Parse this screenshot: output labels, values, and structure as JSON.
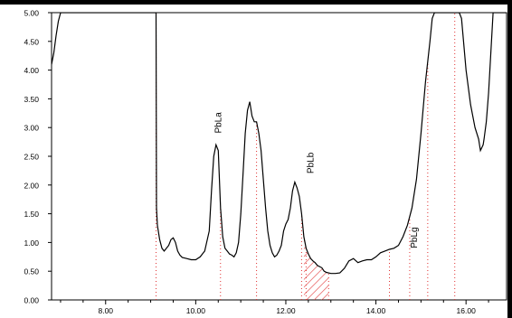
{
  "chart_data": {
    "type": "line",
    "title": "",
    "xlabel": "",
    "ylabel": "",
    "xlim": [
      6.8,
      16.9
    ],
    "ylim": [
      0,
      5
    ],
    "grid": false,
    "x_ticks": [
      8,
      10,
      12,
      14,
      16
    ],
    "x_tick_labels": [
      "8.00",
      "10.00",
      "12.00",
      "14.00",
      "16.00"
    ],
    "y_ticks": [
      0,
      0.5,
      1,
      1.5,
      2,
      2.5,
      3,
      3.5,
      4,
      4.5,
      5
    ],
    "y_tick_labels": [
      "0.00",
      "0.50",
      "1.00",
      "1.50",
      "2.00",
      "2.50",
      "3.00",
      "3.50",
      "4.00",
      "4.50",
      "5.00"
    ],
    "series": [
      {
        "color": "#000000",
        "x": [
          6.8,
          6.85,
          6.9,
          6.95,
          7.0,
          7.05,
          7.08,
          7.1,
          7.2,
          7.3,
          7.4,
          7.5,
          7.6,
          7.8,
          8.0,
          8.5,
          9.0,
          9.12,
          9.13,
          9.15,
          9.2,
          9.25,
          9.3,
          9.35,
          9.4,
          9.45,
          9.5,
          9.55,
          9.6,
          9.65,
          9.7,
          9.8,
          9.9,
          10.0,
          10.1,
          10.2,
          10.3,
          10.35,
          10.4,
          10.45,
          10.5,
          10.52,
          10.55,
          10.6,
          10.65,
          10.7,
          10.75,
          10.8,
          10.85,
          10.9,
          10.95,
          11.0,
          11.05,
          11.1,
          11.15,
          11.2,
          11.25,
          11.3,
          11.35,
          11.4,
          11.45,
          11.5,
          11.55,
          11.6,
          11.65,
          11.7,
          11.75,
          11.8,
          11.85,
          11.9,
          11.95,
          12.0,
          12.05,
          12.1,
          12.15,
          12.2,
          12.25,
          12.3,
          12.35,
          12.4,
          12.45,
          12.5,
          12.55,
          12.6,
          12.65,
          12.7,
          12.75,
          12.8,
          12.85,
          12.9,
          12.95,
          13.0,
          13.1,
          13.2,
          13.3,
          13.4,
          13.5,
          13.6,
          13.7,
          13.8,
          13.9,
          14.0,
          14.1,
          14.2,
          14.3,
          14.4,
          14.5,
          14.6,
          14.7,
          14.8,
          14.9,
          15.0,
          15.1,
          15.2,
          15.25,
          15.3,
          15.35,
          15.4,
          15.45,
          15.5,
          15.55,
          15.6,
          15.65,
          15.7,
          15.75,
          15.8,
          15.85,
          15.9,
          16.0,
          16.1,
          16.2,
          16.28,
          16.3,
          16.32,
          16.35,
          16.38,
          16.4,
          16.45,
          16.5,
          16.55,
          16.6,
          16.62,
          16.65,
          16.7,
          16.8,
          16.9
        ],
        "y": [
          4.1,
          4.3,
          4.6,
          4.85,
          5.0,
          5.0,
          5.0,
          5.0,
          5.0,
          5.0,
          5.0,
          5.0,
          5.0,
          5.0,
          5.0,
          5.0,
          5.0,
          5.0,
          1.6,
          1.3,
          1.05,
          0.9,
          0.85,
          0.9,
          0.95,
          1.05,
          1.08,
          1.0,
          0.85,
          0.78,
          0.74,
          0.72,
          0.7,
          0.7,
          0.75,
          0.85,
          1.2,
          1.9,
          2.5,
          2.7,
          2.6,
          2.2,
          1.6,
          1.1,
          0.9,
          0.85,
          0.8,
          0.78,
          0.75,
          0.82,
          1.0,
          1.5,
          2.2,
          2.9,
          3.3,
          3.45,
          3.2,
          3.1,
          3.1,
          2.9,
          2.6,
          2.1,
          1.6,
          1.2,
          0.95,
          0.82,
          0.75,
          0.78,
          0.85,
          0.95,
          1.2,
          1.32,
          1.4,
          1.6,
          1.9,
          2.05,
          1.95,
          1.8,
          1.5,
          1.1,
          0.9,
          0.8,
          0.72,
          0.68,
          0.65,
          0.6,
          0.58,
          0.56,
          0.5,
          0.48,
          0.47,
          0.46,
          0.46,
          0.47,
          0.55,
          0.68,
          0.72,
          0.65,
          0.68,
          0.7,
          0.7,
          0.75,
          0.82,
          0.85,
          0.88,
          0.9,
          0.95,
          1.1,
          1.3,
          1.6,
          2.1,
          2.9,
          3.8,
          4.5,
          4.9,
          5.0,
          5.0,
          5.0,
          5.0,
          5.0,
          5.0,
          5.0,
          5.0,
          5.0,
          5.0,
          5.0,
          5.0,
          4.9,
          4.0,
          3.4,
          3.0,
          2.8,
          2.7,
          2.6,
          2.65,
          2.7,
          2.8,
          3.1,
          3.6,
          4.3,
          5.0,
          5.0,
          5.0,
          5.0,
          5.0,
          5.0
        ]
      }
    ],
    "annotations": [
      {
        "text": "PbLa",
        "x": 10.5,
        "y": 2.9
      },
      {
        "text": "PbLb",
        "x": 12.55,
        "y": 2.2
      },
      {
        "text": "PbLg",
        "x": 14.85,
        "y": 0.9
      }
    ],
    "dotted_markers_x": [
      9.12,
      10.55,
      11.35,
      12.35,
      12.45,
      12.95,
      14.3,
      14.75,
      15.15,
      15.75
    ],
    "hatched_region": {
      "x_start": 12.4,
      "x_end": 12.95,
      "color": "#e03030"
    }
  }
}
